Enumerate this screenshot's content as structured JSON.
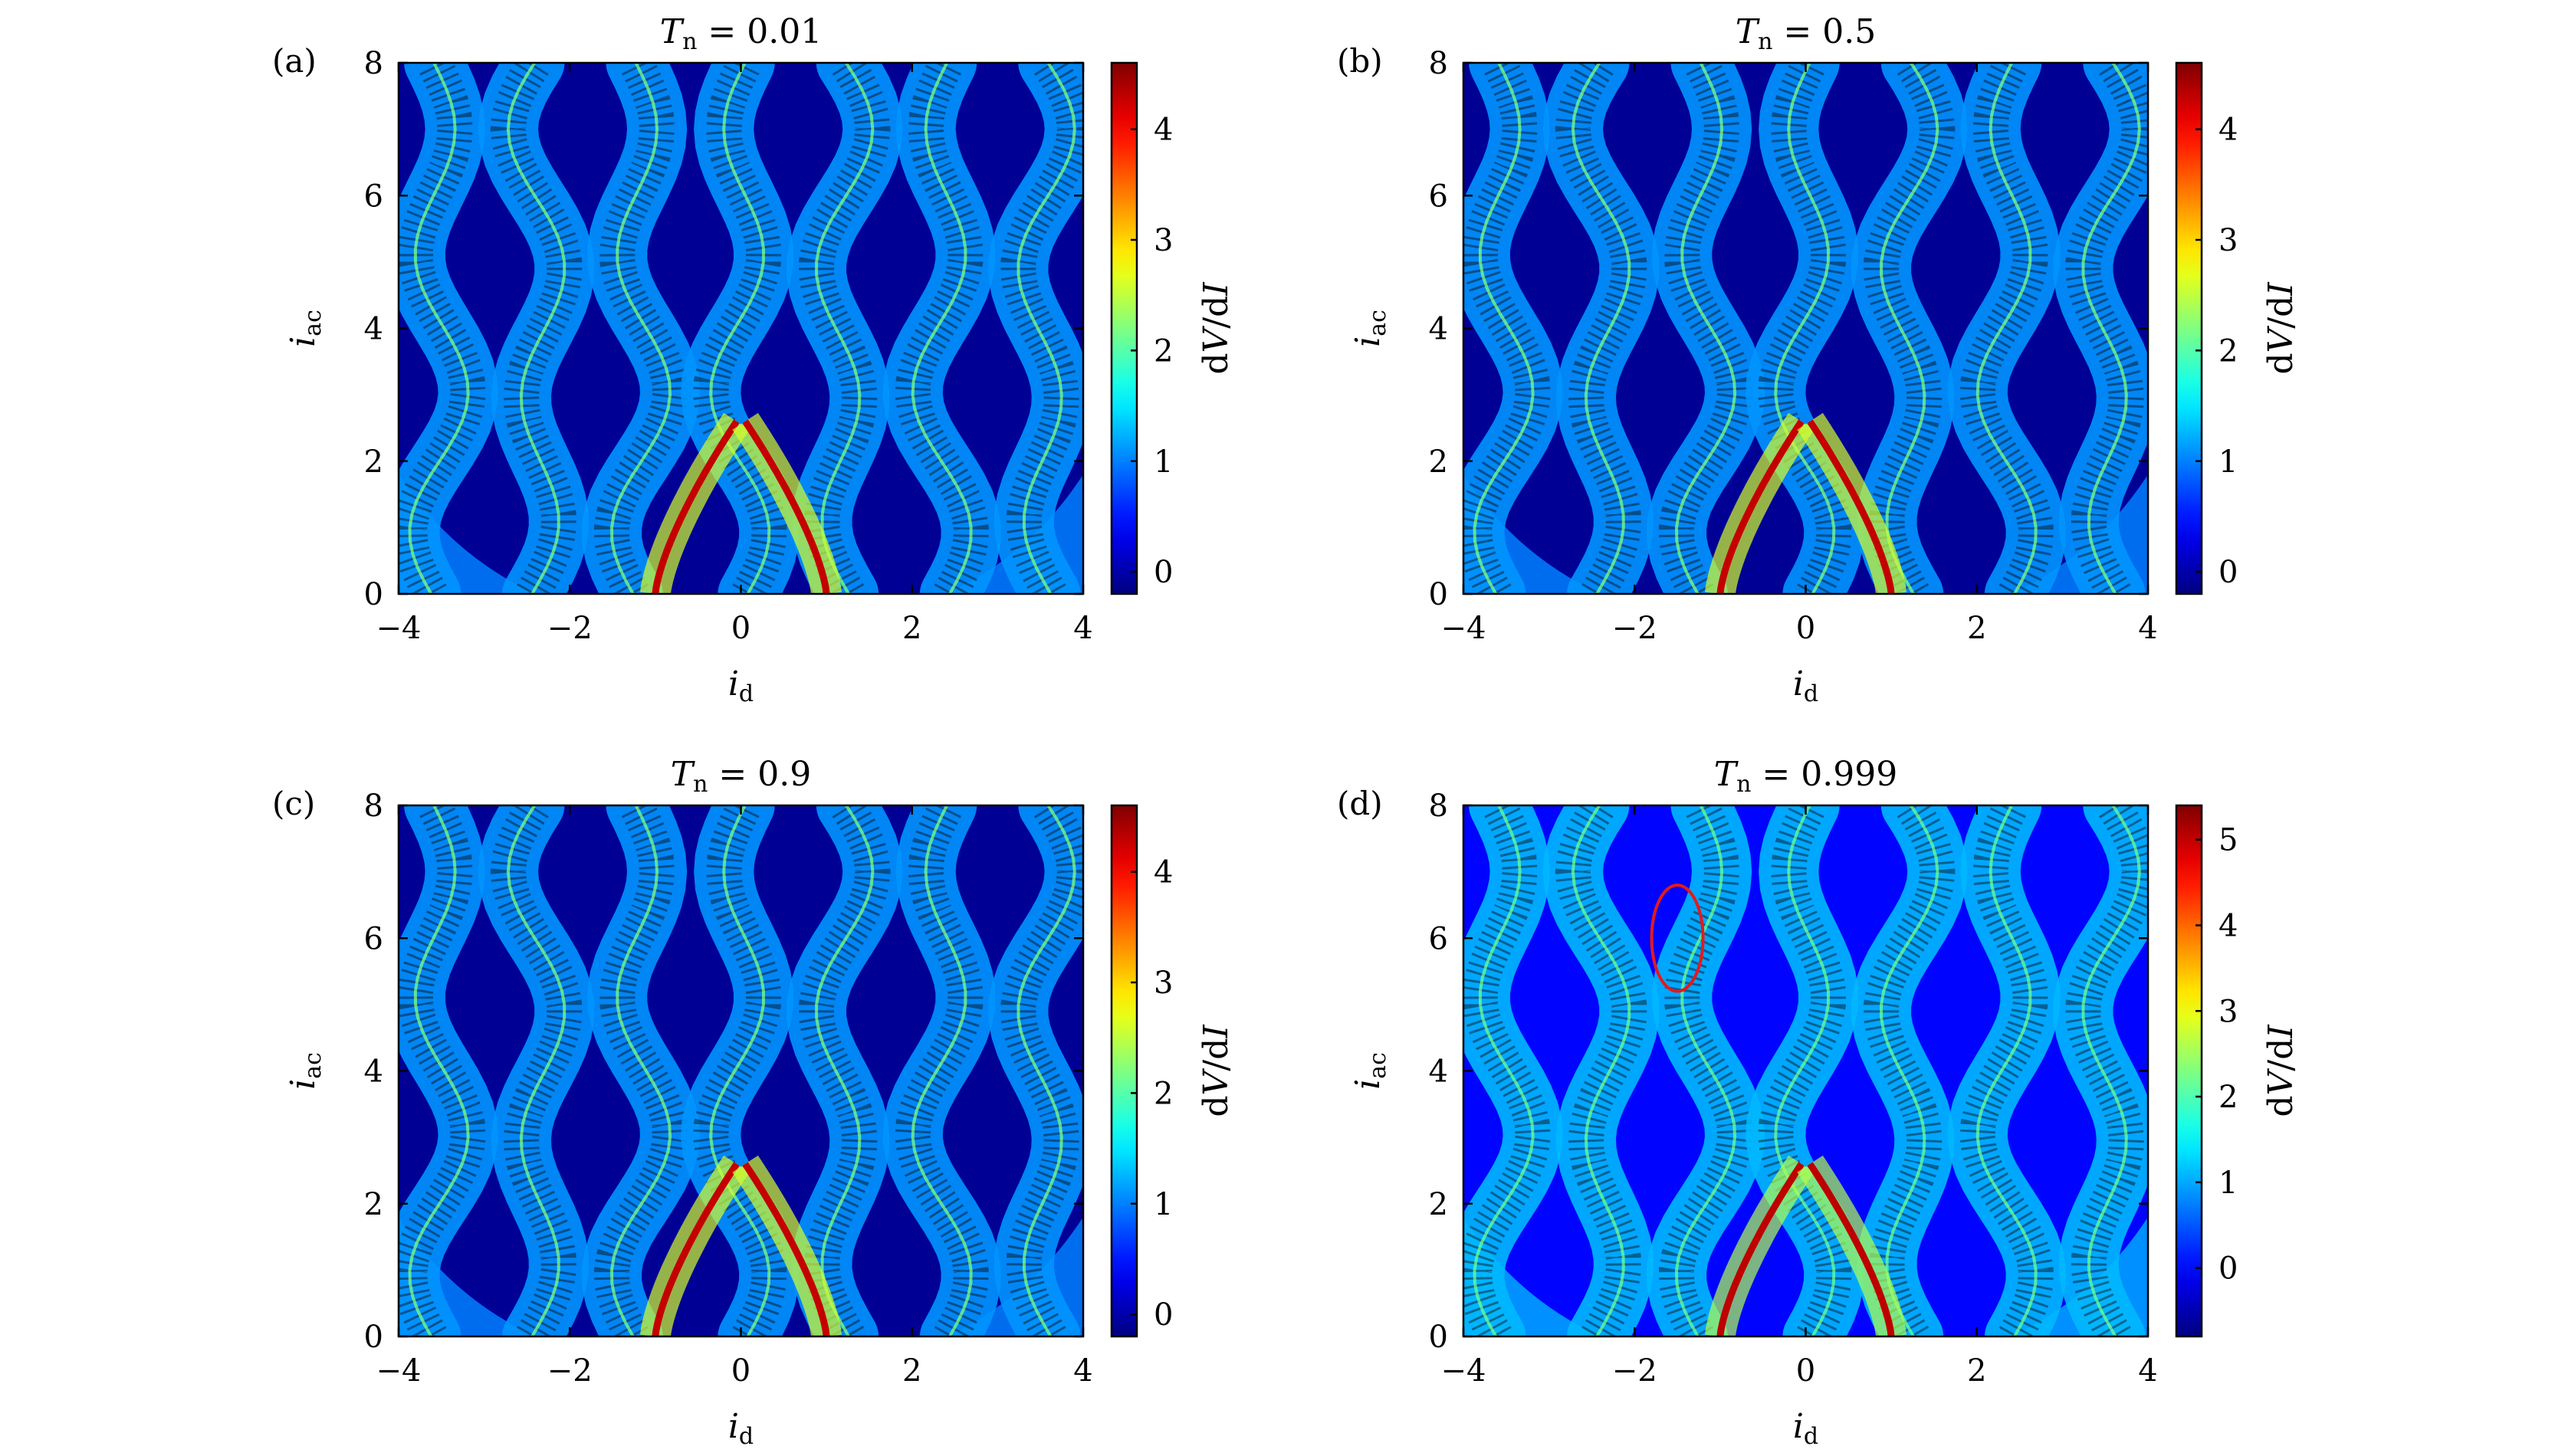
{
  "figure": {
    "colorbar_label": "dV/dI",
    "xlabel": "i_d",
    "ylabel": "i_ac"
  },
  "chart_data": [
    {
      "type": "heatmap",
      "panel_label": "(a)",
      "title": "T_n = 0.01",
      "title_prefix": "T",
      "title_sub": "n",
      "title_value": " = 0.01",
      "xlim": [
        -4,
        4
      ],
      "ylim": [
        0,
        8
      ],
      "x_ticks": [
        -4,
        -2,
        0,
        2,
        4
      ],
      "y_ticks": [
        0,
        2,
        4,
        6,
        8
      ],
      "colorbar_range": [
        -0.2,
        4.6
      ],
      "colorbar_ticks": [
        0,
        1,
        2,
        3,
        4
      ],
      "background_value": -0.1,
      "highlight": null
    },
    {
      "type": "heatmap",
      "panel_label": "(b)",
      "title": "T_n = 0.5",
      "title_prefix": "T",
      "title_sub": "n",
      "title_value": " = 0.5",
      "xlim": [
        -4,
        4
      ],
      "ylim": [
        0,
        8
      ],
      "x_ticks": [
        -4,
        -2,
        0,
        2,
        4
      ],
      "y_ticks": [
        0,
        2,
        4,
        6,
        8
      ],
      "colorbar_range": [
        -0.2,
        4.6
      ],
      "colorbar_ticks": [
        0,
        1,
        2,
        3,
        4
      ],
      "background_value": -0.1,
      "highlight": null
    },
    {
      "type": "heatmap",
      "panel_label": "(c)",
      "title": "T_n = 0.9",
      "title_prefix": "T",
      "title_sub": "n",
      "title_value": " = 0.9",
      "xlim": [
        -4,
        4
      ],
      "ylim": [
        0,
        8
      ],
      "x_ticks": [
        -4,
        -2,
        0,
        2,
        4
      ],
      "y_ticks": [
        0,
        2,
        4,
        6,
        8
      ],
      "colorbar_range": [
        -0.2,
        4.6
      ],
      "colorbar_ticks": [
        0,
        1,
        2,
        3,
        4
      ],
      "background_value": -0.1,
      "highlight": null
    },
    {
      "type": "heatmap",
      "panel_label": "(d)",
      "title": "T_n = 0.999",
      "title_prefix": "T",
      "title_sub": "n",
      "title_value": " = 0.999",
      "xlim": [
        -4,
        4
      ],
      "ylim": [
        0,
        8
      ],
      "x_ticks": [
        -4,
        -2,
        0,
        2,
        4
      ],
      "y_ticks": [
        0,
        2,
        4,
        6,
        8
      ],
      "colorbar_range": [
        -0.8,
        5.4
      ],
      "colorbar_ticks": [
        0,
        1,
        2,
        3,
        4,
        5
      ],
      "background_value": 0.0,
      "highlight": {
        "shape": "ellipse",
        "cx": -1.5,
        "cy": 6.0,
        "rx": 0.3,
        "ry": 0.8,
        "color": "#e41a1c"
      }
    }
  ]
}
